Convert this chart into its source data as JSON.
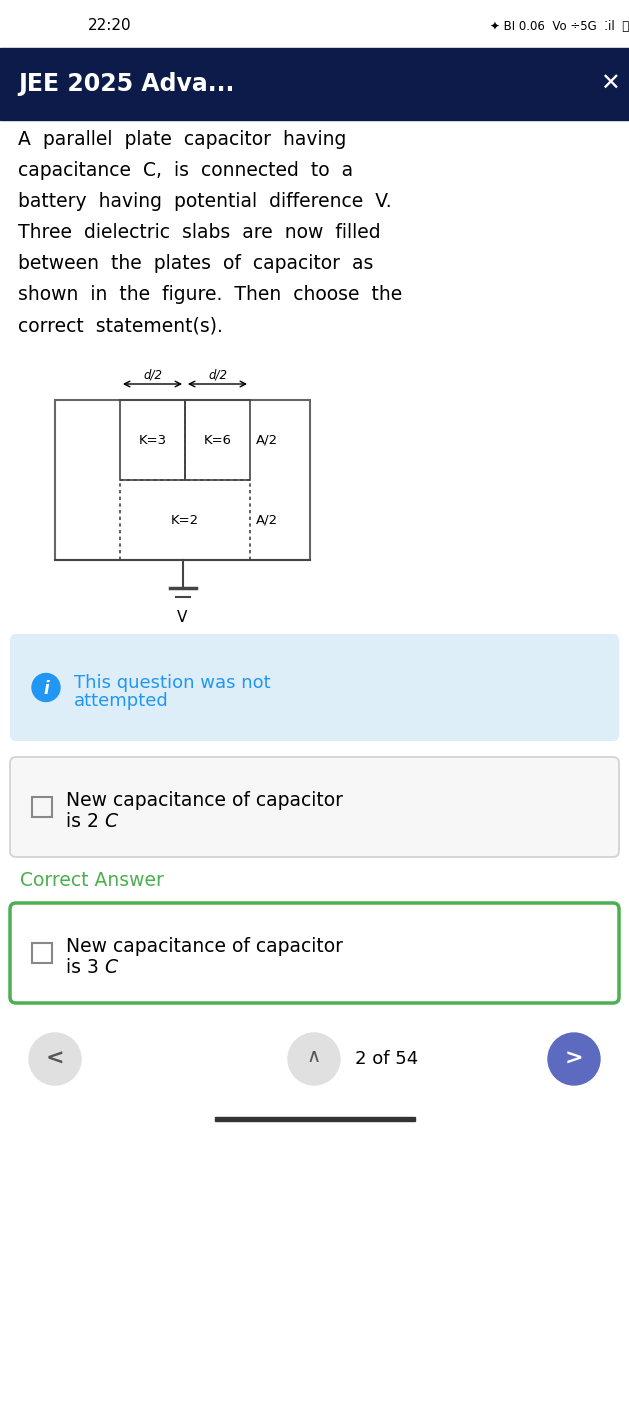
{
  "time_text": "22:20",
  "header_text": "JEE 2025 Adva...",
  "header_bg": "#0d1b4b",
  "header_text_color": "#ffffff",
  "body_bg": "#ffffff",
  "question_lines": [
    "A  parallel  plate  capacitor  having",
    "capacitance  C,  is  connected  to  a",
    "battery  having  potential  difference  V.",
    "Three  dielectric  slabs  are  now  filled",
    "between  the  plates  of  capacitor  as",
    "shown  in  the  figure.  Then  choose  the",
    "correct  statement(s)."
  ],
  "info_box_bg": "#ddeef8",
  "info_text_color": "#2196f3",
  "info_line1": "This question was not",
  "info_line2": "attempted",
  "option1_line1": "New capacitance of capacitor",
  "option1_line2": "is 2C",
  "option1_italic": "C",
  "option2_line1": "New capacitance of capacitor",
  "option2_line2": "is 3C",
  "option2_italic": "C",
  "option2_border": "#4caf50",
  "option_bg": "#f7f7f7",
  "correct_answer_label": "Correct Answer",
  "correct_answer_color": "#4caf50",
  "nav_text": "2 of 54",
  "nav_right_btn_color": "#5c6bc0",
  "nav_left_btn_color": "#e0e0e0",
  "nav_mid_btn_color": "#e0e0e0"
}
